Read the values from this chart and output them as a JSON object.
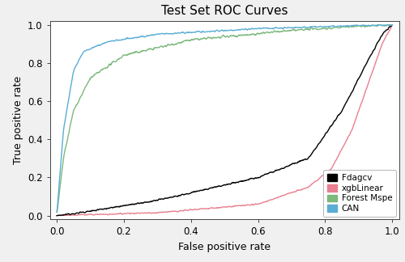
{
  "title": "Test Set ROC Curves",
  "xlabel": "False positive rate",
  "ylabel": "True positive rate",
  "xlim": [
    -0.02,
    1.02
  ],
  "ylim": [
    -0.02,
    1.02
  ],
  "xticks": [
    0.0,
    0.2,
    0.4,
    0.6,
    0.8,
    1.0
  ],
  "yticks": [
    0.0,
    0.2,
    0.4,
    0.6,
    0.8,
    1.0
  ],
  "legend_labels": [
    "Fdagcv",
    "xgbLinear",
    "Forest Mspe",
    "CAN"
  ],
  "legend_colors": [
    "#000000",
    "#e88090",
    "#7db87d",
    "#5aadd4"
  ],
  "background_color": "#f0f0f0",
  "plot_bg_color": "#ffffff",
  "title_fontsize": 11,
  "axis_fontsize": 9,
  "tick_fontsize": 8.5,
  "linewidth": 1.0
}
